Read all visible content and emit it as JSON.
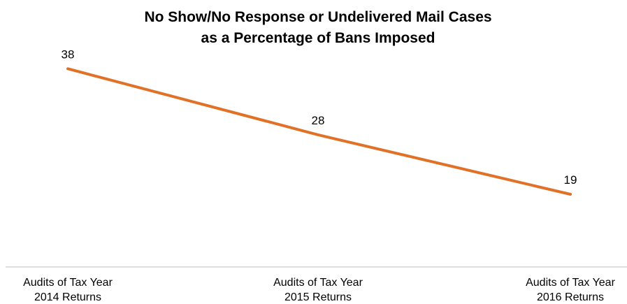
{
  "chart_data": {
    "type": "line",
    "title_lines": [
      "No Show/No Response or Undelivered Mail Cases",
      "as a Percentage of Bans Imposed"
    ],
    "categories": [
      [
        "Audits of Tax Year",
        "2014 Returns"
      ],
      [
        "Audits of Tax Year",
        "2015 Returns"
      ],
      [
        "Audits of Tax Year",
        "2016 Returns"
      ]
    ],
    "series": [
      {
        "values": [
          38,
          28,
          19
        ],
        "data_labels": [
          "38",
          "28",
          "19"
        ],
        "color": "#E07126"
      }
    ],
    "ylim": [
      8,
      41
    ],
    "grid": false,
    "legend": "none",
    "axis_color": "#BFBFBF"
  }
}
